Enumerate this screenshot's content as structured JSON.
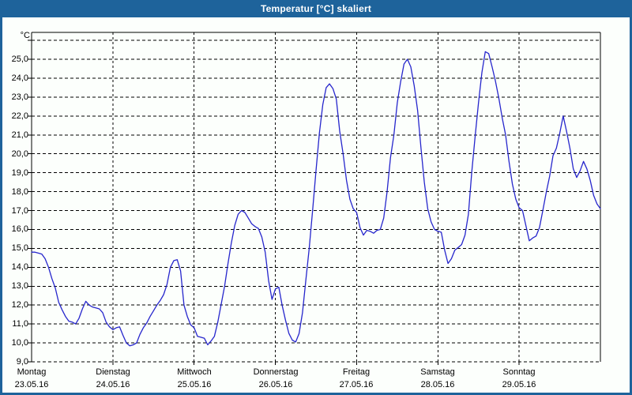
{
  "window": {
    "title": "Temperatur [°C] skaliert"
  },
  "colors": {
    "frame_blue": "#1e639b",
    "titlebar_text": "#ffffff",
    "background": "#fcfffc",
    "line_blue": "#2626cc",
    "grid_black": "#000000"
  },
  "chart_data": {
    "type": "line",
    "title": "Temperatur [°C] skaliert",
    "grid": "dashed",
    "legend": "none",
    "y_axis": {
      "unit_label": "°C",
      "min": 9.0,
      "max": 26.4,
      "tick_step": 1.0,
      "tick_labels": [
        "25,0",
        "24,0",
        "23,0",
        "22,0",
        "21,0",
        "20,0",
        "19,0",
        "18,0",
        "17,0",
        "16,0",
        "15,0",
        "14,0",
        "13,0",
        "12,0",
        "11,0",
        "10,0",
        "9,0"
      ]
    },
    "x_axis": {
      "span_days": 7,
      "days": [
        {
          "weekday": "Montag",
          "date": "23.05.16"
        },
        {
          "weekday": "Dienstag",
          "date": "24.05.16"
        },
        {
          "weekday": "Mittwoch",
          "date": "25.05.16"
        },
        {
          "weekday": "Donnerstag",
          "date": "26.05.16"
        },
        {
          "weekday": "Freitag",
          "date": "27.05.16"
        },
        {
          "weekday": "Samstag",
          "date": "28.05.16"
        },
        {
          "weekday": "Sonntag",
          "date": "29.05.16"
        }
      ]
    },
    "series": [
      {
        "name": "Temperatur [°C]",
        "sampling": "hourly, Montag 00:00 bis Sonntag 24:00",
        "color": "#2626cc",
        "values": [
          14.8,
          14.8,
          14.75,
          14.7,
          14.45,
          14.0,
          13.4,
          12.9,
          12.15,
          11.75,
          11.4,
          11.15,
          11.1,
          11.0,
          11.3,
          11.8,
          12.2,
          12.0,
          11.9,
          11.85,
          11.8,
          11.6,
          11.1,
          10.85,
          10.7,
          10.8,
          10.85,
          10.4,
          10.0,
          9.85,
          9.9,
          10.0,
          10.45,
          10.8,
          11.05,
          11.4,
          11.7,
          12.0,
          12.25,
          12.55,
          13.1,
          14.0,
          14.35,
          14.4,
          13.8,
          12.0,
          11.4,
          10.95,
          10.8,
          10.35,
          10.3,
          10.25,
          9.9,
          10.1,
          10.35,
          11.1,
          12.05,
          13.0,
          14.2,
          15.3,
          16.2,
          16.8,
          17.0,
          16.9,
          16.6,
          16.3,
          16.15,
          16.05,
          15.6,
          14.8,
          13.3,
          12.3,
          12.85,
          12.95,
          12.0,
          11.2,
          10.5,
          10.15,
          10.05,
          10.5,
          11.6,
          13.3,
          15.0,
          17.0,
          19.1,
          21.1,
          22.6,
          23.5,
          23.7,
          23.45,
          22.9,
          21.2,
          20.0,
          18.6,
          17.6,
          17.1,
          16.9,
          16.1,
          15.7,
          15.95,
          15.9,
          15.8,
          15.95,
          16.0,
          16.6,
          18.0,
          19.8,
          21.0,
          22.7,
          23.8,
          24.75,
          25.0,
          24.6,
          23.6,
          22.3,
          20.3,
          18.5,
          17.1,
          16.4,
          16.0,
          15.9,
          15.85,
          14.9,
          14.2,
          14.45,
          14.9,
          15.05,
          15.2,
          15.7,
          16.8,
          19.0,
          20.9,
          22.7,
          24.3,
          25.4,
          25.3,
          24.6,
          23.85,
          22.95,
          21.9,
          21.0,
          19.6,
          18.4,
          17.6,
          17.15,
          17.0,
          16.2,
          15.4,
          15.55,
          15.65,
          16.1,
          17.0,
          17.95,
          18.8,
          19.9,
          20.3,
          21.1,
          22.0,
          21.2,
          20.3,
          19.2,
          18.75,
          19.1,
          19.6,
          19.2,
          18.6,
          17.8,
          17.35,
          17.1
        ]
      }
    ]
  }
}
